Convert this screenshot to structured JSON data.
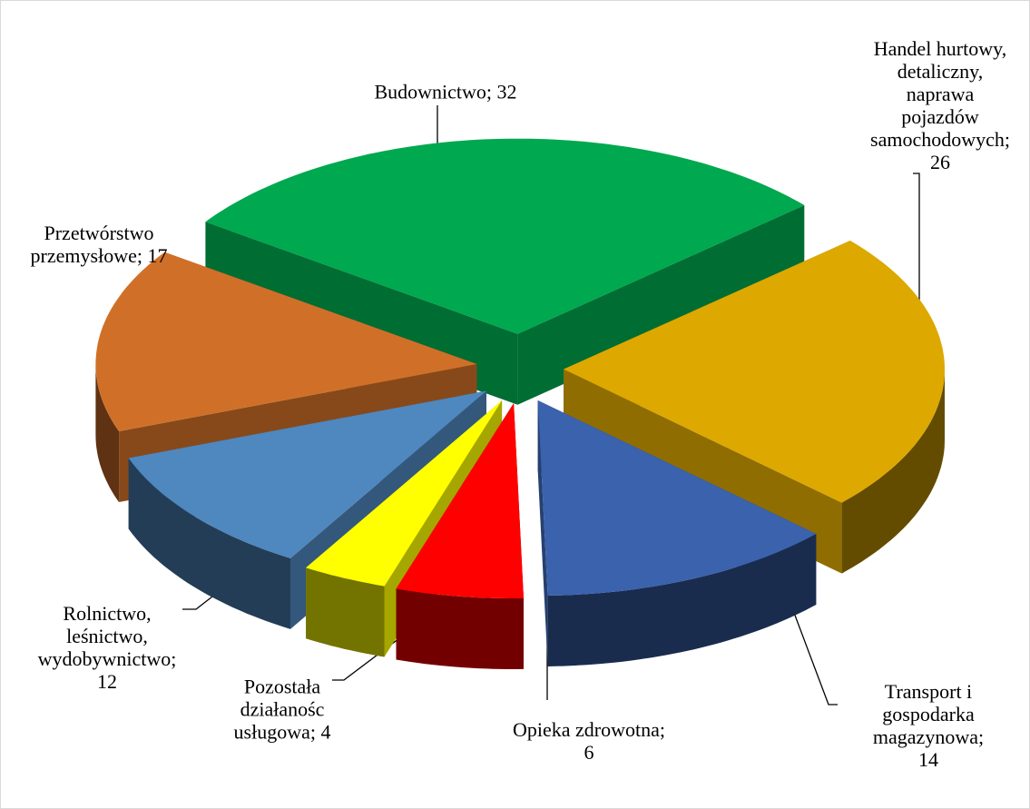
{
  "chart_data": {
    "type": "pie3d",
    "values": [
      32,
      26,
      14,
      6,
      4,
      12,
      17
    ],
    "value_labels": [
      "Budownictwo; 32",
      "Handel hurtowy,\ndetaliczny,\nnaprawa pojazdów\nsamochodowych;\n26",
      "Transport i\ngospodarka\nmagazynowa; 14",
      "Opieka zdrowotna;\n6",
      "Pozostała\ndziałanośc\nusługowa; 4",
      "Rolnictwo,\nleśnictwo,\nwydobywnictwo;\n12",
      "Przetwórstwo\nprzemysłowe; 17"
    ],
    "colors": [
      "#00a84f",
      "#dda800",
      "#3a62ad",
      "#ff0000",
      "#ffff00",
      "#4f87bf",
      "#d07028"
    ]
  }
}
